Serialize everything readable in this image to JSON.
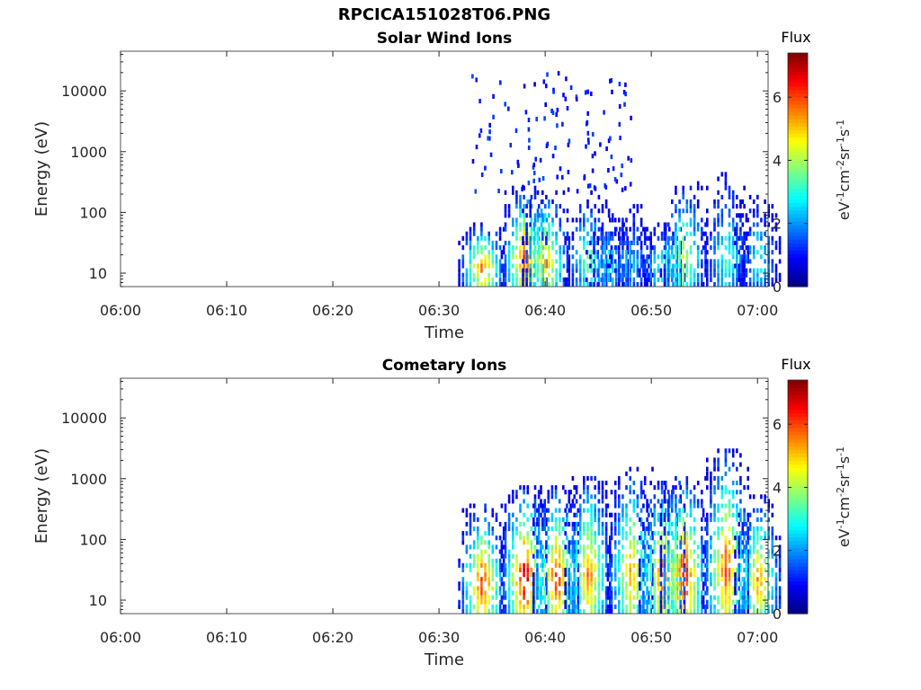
{
  "figure": {
    "title": "RPCICA151028T06.PNG"
  },
  "chart_data": [
    {
      "type": "heatmap",
      "title": "Solar Wind Ions",
      "xlabel": "Time",
      "ylabel": "Energy (eV)",
      "x_ticks": [
        "06:00",
        "06:10",
        "06:20",
        "06:30",
        "06:40",
        "06:50",
        "07:00"
      ],
      "xlim": [
        "06:00",
        "07:01"
      ],
      "y_scale": "log",
      "y_ticks": [
        "10",
        "100",
        "1000",
        "10000"
      ],
      "ylim": [
        6,
        45000
      ],
      "colorbar": {
        "title": "Flux",
        "label": "eV-1cm-2sr-1s-1",
        "ticks": [
          "0",
          "2",
          "4",
          "6"
        ],
        "range": [
          0,
          7.4
        ],
        "colormap": "jet"
      },
      "bursts": [
        {
          "time": "06:34",
          "peak": 6.0,
          "top_energy": 60
        },
        {
          "time": "06:38",
          "peak": 6.3,
          "top_energy": 250
        },
        {
          "time": "06:40",
          "peak": 5.5,
          "top_energy": 220
        },
        {
          "time": "06:44",
          "peak": 3.8,
          "top_energy": 200
        },
        {
          "time": "06:46",
          "peak": 3.0,
          "top_energy": 100
        },
        {
          "time": "06:48",
          "peak": 2.5,
          "top_energy": 150
        },
        {
          "time": "06:51",
          "peak": 3.5,
          "top_energy": 70
        },
        {
          "time": "06:53",
          "peak": 4.5,
          "top_energy": 300
        },
        {
          "time": "06:57",
          "peak": 3.5,
          "top_energy": 400
        },
        {
          "time": "07:00",
          "peak": 3.0,
          "top_energy": 200
        }
      ],
      "sparse_high_energy": {
        "time_range": [
          "06:33",
          "06:48"
        ],
        "energy_range": [
          200,
          18000
        ],
        "flux": 1.0
      }
    },
    {
      "type": "heatmap",
      "title": "Cometary Ions",
      "xlabel": "Time",
      "ylabel": "Energy (eV)",
      "x_ticks": [
        "06:00",
        "06:10",
        "06:20",
        "06:30",
        "06:40",
        "06:50",
        "07:00"
      ],
      "xlim": [
        "06:00",
        "07:01"
      ],
      "y_scale": "log",
      "y_ticks": [
        "10",
        "100",
        "1000",
        "10000"
      ],
      "ylim": [
        6,
        45000
      ],
      "colorbar": {
        "title": "Flux",
        "label": "eV-1cm-2sr-1s-1",
        "ticks": [
          "0",
          "2",
          "4",
          "6"
        ],
        "range": [
          0,
          7.4
        ],
        "colormap": "jet"
      },
      "bursts": [
        {
          "time": "06:34",
          "peak": 6.5,
          "top_energy": 350
        },
        {
          "time": "06:38",
          "peak": 7.2,
          "top_energy": 700
        },
        {
          "time": "06:41",
          "peak": 6.6,
          "top_energy": 700
        },
        {
          "time": "06:44",
          "peak": 5.8,
          "top_energy": 1100
        },
        {
          "time": "06:48",
          "peak": 5.6,
          "top_energy": 1400
        },
        {
          "time": "06:51",
          "peak": 6.2,
          "top_energy": 900
        },
        {
          "time": "06:53",
          "peak": 6.8,
          "top_energy": 1100
        },
        {
          "time": "06:57",
          "peak": 6.3,
          "top_energy": 3000
        },
        {
          "time": "07:00",
          "peak": 5.6,
          "top_energy": 500
        }
      ]
    }
  ]
}
